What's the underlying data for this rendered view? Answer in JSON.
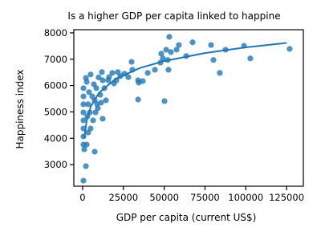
{
  "chart_data": {
    "type": "scatter",
    "title": "Is a higher GDP per capita linked to happine",
    "x_label": "GDP per capita (current US$)",
    "y_label": "Happiness index",
    "color": "#1f77b4",
    "x": [
      500,
      2000,
      500,
      2500,
      1000,
      7400,
      12300,
      500,
      500,
      500,
      500,
      500,
      500,
      500,
      2500,
      2000,
      4900,
      11800,
      16200,
      18200,
      21600,
      23100,
      28000,
      30000,
      30500,
      34000,
      34400,
      34000,
      36900,
      39900,
      44300,
      47700,
      48200,
      49200,
      50200,
      51200,
      52200,
      52600,
      53100,
      54100,
      57600,
      59000,
      63500,
      67400,
      78700,
      80200,
      84100,
      87600,
      98900,
      102800,
      126900,
      3400,
      4400,
      5900,
      7400,
      8400,
      9300,
      10800,
      4900,
      3400,
      6400,
      2900,
      7900,
      13300,
      15700,
      14300,
      12300,
      9800,
      19200,
      25600,
      20700,
      6900,
      3900,
      11300,
      8900
    ],
    "values": [
      2390,
      2940,
      3760,
      3760,
      3580,
      3490,
      4740,
      4070,
      4370,
      4680,
      4980,
      5290,
      5590,
      5900,
      6140,
      6290,
      6420,
      6510,
      6320,
      6480,
      6510,
      6360,
      6320,
      6900,
      6600,
      6200,
      6110,
      5470,
      6170,
      6480,
      6600,
      6870,
      7210,
      7030,
      5410,
      7360,
      6970,
      6600,
      7850,
      7270,
      7360,
      7540,
      7120,
      7640,
      7540,
      6970,
      6480,
      7360,
      7510,
      7030,
      7390,
      5290,
      4980,
      5590,
      5440,
      5900,
      5140,
      5650,
      4370,
      4220,
      4680,
      4830,
      4980,
      5900,
      6200,
      5440,
      6200,
      6310,
      6080,
      6450,
      6200,
      6050,
      5750,
      5350,
      5290
    ],
    "trend": {
      "x": [
        1000,
        2500,
        5000,
        10000,
        20000,
        35000,
        50000,
        75000,
        100000,
        125000
      ],
      "values": [
        3996,
        4683,
        5203,
        5723,
        6243,
        6663,
        6930,
        7234,
        7450,
        7617
      ]
    },
    "xlim": [
      -5400,
      135300
    ],
    "ylim": [
      2180,
      8120
    ],
    "xticks": [
      0,
      25000,
      50000,
      75000,
      100000,
      125000
    ],
    "yticks": [
      3000,
      4000,
      5000,
      6000,
      7000,
      8000
    ]
  }
}
